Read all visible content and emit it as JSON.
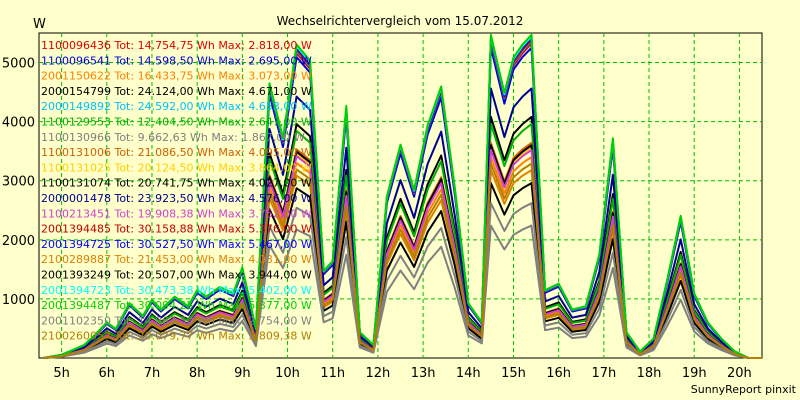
{
  "chart_data": {
    "type": "line",
    "title": "Wechselrichtervergleich vom 15.07.2012",
    "ylabel": "W",
    "credit": "SunnyReport pinxit",
    "ylim": [
      0,
      5500
    ],
    "xlim": [
      4.5,
      20.5
    ],
    "grid": true,
    "legend_position": "top-left",
    "x_ticks": [
      {
        "value": 5,
        "label": "5h"
      },
      {
        "value": 6,
        "label": "6h"
      },
      {
        "value": 7,
        "label": "7h"
      },
      {
        "value": 8,
        "label": "8h"
      },
      {
        "value": 9,
        "label": "9h"
      },
      {
        "value": 10,
        "label": "10h"
      },
      {
        "value": 11,
        "label": "11h"
      },
      {
        "value": 12,
        "label": "12h"
      },
      {
        "value": 13,
        "label": "13h"
      },
      {
        "value": 14,
        "label": "14h"
      },
      {
        "value": 15,
        "label": "15h"
      },
      {
        "value": 16,
        "label": "16h"
      },
      {
        "value": 17,
        "label": "17h"
      },
      {
        "value": 18,
        "label": "18h"
      },
      {
        "value": 19,
        "label": "19h"
      },
      {
        "value": 20,
        "label": "20h"
      }
    ],
    "y_ticks": [
      {
        "value": 1000,
        "label": "1000"
      },
      {
        "value": 2000,
        "label": "2000"
      },
      {
        "value": 3000,
        "label": "3000"
      },
      {
        "value": 4000,
        "label": "4000"
      },
      {
        "value": 5000,
        "label": "5000"
      }
    ],
    "x": [
      4.6,
      5.0,
      5.5,
      5.8,
      6.0,
      6.2,
      6.5,
      6.8,
      7.0,
      7.2,
      7.5,
      7.8,
      8.0,
      8.2,
      8.5,
      8.8,
      9.0,
      9.3,
      9.6,
      9.9,
      10.2,
      10.5,
      10.8,
      11.0,
      11.3,
      11.6,
      11.9,
      12.2,
      12.5,
      12.8,
      13.1,
      13.4,
      13.7,
      14.0,
      14.3,
      14.5,
      14.8,
      15.0,
      15.2,
      15.4,
      15.7,
      16.0,
      16.3,
      16.6,
      16.9,
      17.2,
      17.5,
      17.8,
      18.1,
      18.4,
      18.7,
      19.0,
      19.3,
      19.6,
      19.9,
      20.2,
      20.5
    ],
    "base_profile": [
      0,
      0.01,
      0.04,
      0.08,
      0.11,
      0.09,
      0.17,
      0.13,
      0.18,
      0.15,
      0.19,
      0.16,
      0.21,
      0.19,
      0.22,
      0.2,
      0.28,
      0.09,
      0.85,
      0.68,
      0.97,
      0.92,
      0.27,
      0.3,
      0.78,
      0.08,
      0.04,
      0.5,
      0.66,
      0.52,
      0.72,
      0.84,
      0.53,
      0.17,
      0.11,
      1.0,
      0.82,
      0.93,
      0.97,
      1.0,
      0.21,
      0.23,
      0.15,
      0.16,
      0.32,
      0.68,
      0.08,
      0.02,
      0.06,
      0.24,
      0.44,
      0.2,
      0.11,
      0.06,
      0.02,
      0.0,
      0.0
    ],
    "series": [
      {
        "name": "1100096436",
        "label": "1100096436 Tot: 14.754,75 Wh Max: 2.818,00 W",
        "color": "#e00000",
        "scale": 5320
      },
      {
        "name": "1100096541",
        "label": "1100096541 Tot: 14.598,50 Wh Max: 2.695,00 W",
        "color": "#0000d0",
        "scale": 5250
      },
      {
        "name": "2001150622",
        "label": "2001150622 Tot: 16.433,75 Wh Max: 3.073,00 W",
        "color": "#ff8000",
        "scale": 3400
      },
      {
        "name": "2000154799",
        "label": "2000154799 Tot: 24.124,00 Wh Max: 4.671,00 W",
        "color": "#000000",
        "scale": 4080
      },
      {
        "name": "2000149892",
        "label": "2000149892 Tot: 24.592,00 Wh Max: 4.653,00 W",
        "color": "#00c0ff",
        "scale": 5360
      },
      {
        "name": "1100129553",
        "label": "1100129553 Tot: 12.404,50 Wh Max: 2.647,00 W",
        "color": "#00b000",
        "scale": 3960
      },
      {
        "name": "1100130966",
        "label": "1100130966 Tot: 9.662,63 Wh Max: 1.867,00 W",
        "color": "#808080",
        "scale": 2240
      },
      {
        "name": "1100131006",
        "label": "1100131006 Tot: 21.086,50 Wh Max: 4.095,00 W",
        "color": "#d06000",
        "scale": 3640
      },
      {
        "name": "1100131025",
        "label": "1100131025 Tot: 20.124,50 Wh Max: 3.864,00 W",
        "color": "#ffd000",
        "scale": 3560
      },
      {
        "name": "1100131074",
        "label": "1100131074 Tot: 20.741,75 Wh Max: 4.027,00 W",
        "color": "#000000",
        "scale": 3600
      },
      {
        "name": "2000001478",
        "label": "2000001478 Tot: 23.923,50 Wh Max: 4.576,00 W",
        "color": "#000090",
        "scale": 4560
      },
      {
        "name": "1100213451",
        "label": "1100213451 Tot: 19.908,38 Wh Max: 3.752,00 W",
        "color": "#d040d0",
        "scale": 3520
      },
      {
        "name": "2001394485",
        "label": "2001394485 Tot: 30.158,88 Wh Max: 5.376,00 W",
        "color": "#c00000",
        "scale": 5380
      },
      {
        "name": "2001394725",
        "label": "2001394725 Tot: 30.527,50 Wh Max: 5.467,00 W",
        "color": "#0000ff",
        "scale": 5420
      },
      {
        "name": "2100289887",
        "label": "2100289887 Tot: 21.453,00 Wh Max: 4.031,00 W",
        "color": "#e08000",
        "scale": 3180
      },
      {
        "name": "2001393249",
        "label": "2001393249 Tot: 20.507,00 Wh Max: 3.944,00 W",
        "color": "#000000",
        "scale": 2960
      },
      {
        "name": "2001394723",
        "label": "2001394723 Tot: 30.473,38 Wh Max: 5.402,00 W",
        "color": "#00ffff",
        "scale": 5440
      },
      {
        "name": "2001394487",
        "label": "2001394487 Tot: 30.094,25 Wh Max: 5.377,00 W",
        "color": "#00d000",
        "scale": 5470
      },
      {
        "name": "2001102350",
        "label": "2001102350 Tot: 14.863,50 Wh Max: 2.754,00 W",
        "color": "#808080",
        "scale": 2620
      },
      {
        "name": "2100260057",
        "label": "2100260057 Tot: 20.079,77 Wh Max: 3.809,38 W",
        "color": "#b08000",
        "scale": 3290
      }
    ]
  }
}
